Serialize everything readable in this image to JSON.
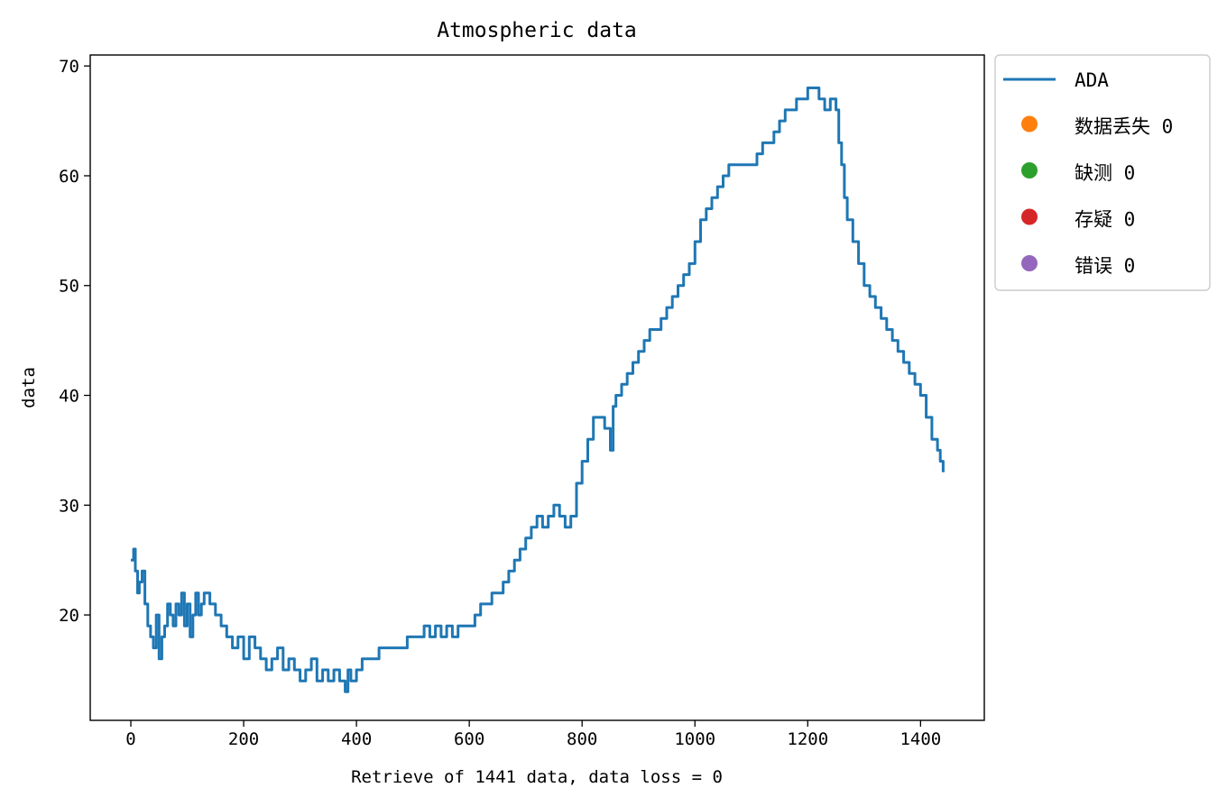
{
  "chart_data": {
    "type": "line",
    "title": "Atmospheric data",
    "xlabel": "Retrieve of 1441 data, data loss = 0",
    "ylabel": "data",
    "xlim": [
      -72,
      1513
    ],
    "ylim": [
      10.4,
      71
    ],
    "xticks": [
      0,
      200,
      400,
      600,
      800,
      1000,
      1200,
      1400
    ],
    "yticks": [
      20,
      30,
      40,
      50,
      60,
      70
    ],
    "grid": false,
    "legend_position": "outside-top-right",
    "series": [
      {
        "name": "ADA",
        "color": "#1f77b4",
        "x": [
          0,
          5,
          8,
          12,
          15,
          20,
          25,
          30,
          35,
          40,
          45,
          50,
          55,
          60,
          65,
          70,
          75,
          80,
          85,
          90,
          95,
          100,
          105,
          110,
          115,
          120,
          125,
          130,
          140,
          150,
          160,
          170,
          180,
          190,
          200,
          210,
          220,
          230,
          240,
          250,
          260,
          270,
          280,
          290,
          300,
          310,
          320,
          330,
          340,
          350,
          360,
          370,
          380,
          385,
          390,
          400,
          410,
          420,
          430,
          440,
          450,
          460,
          470,
          480,
          490,
          500,
          510,
          520,
          530,
          540,
          550,
          560,
          570,
          580,
          590,
          600,
          610,
          620,
          630,
          640,
          650,
          660,
          670,
          680,
          690,
          700,
          710,
          720,
          730,
          740,
          750,
          760,
          770,
          780,
          790,
          800,
          810,
          820,
          830,
          840,
          850,
          855,
          860,
          870,
          880,
          890,
          900,
          910,
          920,
          930,
          940,
          950,
          960,
          970,
          980,
          990,
          1000,
          1010,
          1020,
          1030,
          1040,
          1050,
          1060,
          1070,
          1080,
          1090,
          1100,
          1110,
          1120,
          1130,
          1140,
          1150,
          1160,
          1170,
          1180,
          1190,
          1200,
          1210,
          1220,
          1230,
          1240,
          1250,
          1255,
          1260,
          1265,
          1270,
          1280,
          1290,
          1300,
          1310,
          1320,
          1330,
          1340,
          1350,
          1360,
          1370,
          1380,
          1390,
          1400,
          1410,
          1420,
          1430,
          1435,
          1440
        ],
        "y": [
          25,
          26,
          24,
          22,
          23,
          24,
          21,
          19,
          18,
          17,
          20,
          16,
          18,
          19,
          21,
          20,
          19,
          21,
          20,
          22,
          19,
          21,
          18,
          20,
          22,
          20,
          21,
          22,
          21,
          20,
          19,
          18,
          17,
          18,
          16,
          18,
          17,
          16,
          15,
          16,
          17,
          15,
          16,
          15,
          14,
          15,
          16,
          14,
          15,
          14,
          15,
          14,
          13,
          15,
          14,
          15,
          16,
          16,
          16,
          17,
          17,
          17,
          17,
          17,
          18,
          18,
          18,
          19,
          18,
          19,
          18,
          19,
          18,
          19,
          19,
          19,
          20,
          21,
          21,
          22,
          22,
          23,
          24,
          25,
          26,
          27,
          28,
          29,
          28,
          29,
          30,
          29,
          28,
          29,
          32,
          34,
          36,
          38,
          38,
          37,
          35,
          39,
          40,
          41,
          42,
          43,
          44,
          45,
          46,
          46,
          47,
          48,
          49,
          50,
          51,
          52,
          54,
          56,
          57,
          58,
          59,
          60,
          61,
          61,
          61,
          61,
          61,
          62,
          63,
          63,
          64,
          65,
          66,
          66,
          67,
          67,
          68,
          68,
          67,
          66,
          67,
          66,
          63,
          61,
          58,
          56,
          54,
          52,
          50,
          49,
          48,
          47,
          46,
          45,
          44,
          43,
          42,
          41,
          40,
          38,
          36,
          35,
          34,
          33
        ]
      }
    ],
    "legend": [
      {
        "label": "ADA",
        "marker": "line",
        "color": "#1f77b4"
      },
      {
        "label": "数据丢失 0",
        "marker": "dot",
        "color": "#ff7f0e"
      },
      {
        "label": "缺测 0",
        "marker": "dot",
        "color": "#2ca02c"
      },
      {
        "label": "存疑 0",
        "marker": "dot",
        "color": "#d62728"
      },
      {
        "label": "错误 0",
        "marker": "dot",
        "color": "#9467bd"
      }
    ]
  }
}
